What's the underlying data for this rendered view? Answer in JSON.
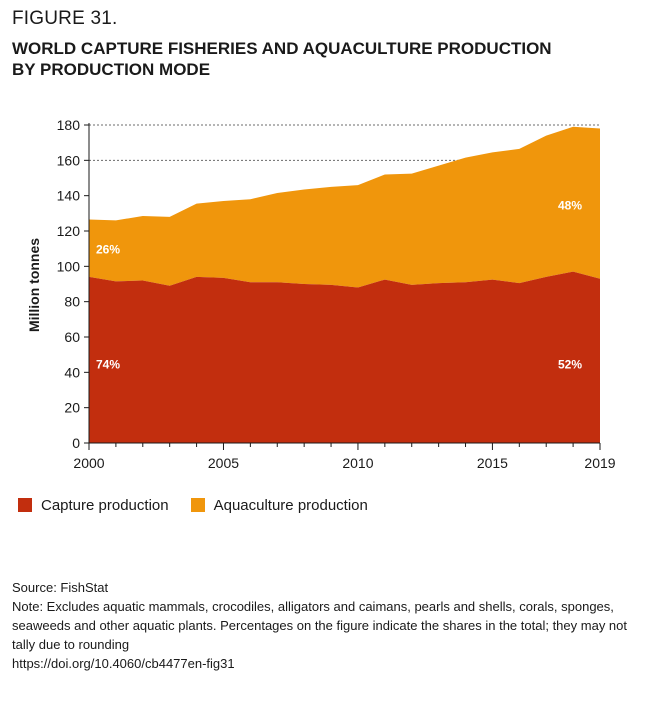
{
  "figure": {
    "label": "FIGURE 31.",
    "title_line1": "WORLD CAPTURE FISHERIES AND AQUACULTURE PRODUCTION",
    "title_line2": "BY PRODUCTION MODE"
  },
  "colors": {
    "capture": "#c22e0e",
    "aquaculture": "#f0960c",
    "grid": "#6b6b6b",
    "label_text": "#ffffff"
  },
  "chart_data": {
    "type": "area",
    "stacked": true,
    "x": [
      2000,
      2001,
      2002,
      2003,
      2004,
      2005,
      2006,
      2007,
      2008,
      2009,
      2010,
      2011,
      2012,
      2013,
      2014,
      2015,
      2016,
      2017,
      2018,
      2019
    ],
    "series": [
      {
        "name": "Capture production",
        "values": [
          94,
          91.5,
          92,
          89,
          94,
          93.5,
          91,
          91,
          90,
          89.5,
          88,
          92.5,
          89.5,
          90.5,
          91,
          92.5,
          90.5,
          94,
          97,
          93
        ]
      },
      {
        "name": "Aquaculture production",
        "values": [
          32.5,
          34.5,
          36.5,
          39,
          41.5,
          43.5,
          47,
          50.5,
          53.5,
          55.5,
          58,
          59.5,
          63,
          66.5,
          70.5,
          72,
          76,
          80,
          82,
          85
        ]
      }
    ],
    "xticks": [
      2000,
      2005,
      2010,
      2015,
      2019
    ],
    "yticks": [
      0,
      20,
      40,
      60,
      80,
      100,
      120,
      140,
      160,
      180
    ],
    "ylim": [
      0,
      180
    ],
    "ylabel": "Million tonnes",
    "xlabel": "",
    "grid": "dotted horizontal at 160 and 180",
    "annotations": [
      {
        "text": "26%",
        "x": 2000,
        "y": 110
      },
      {
        "text": "74%",
        "x": 2000,
        "y": 45
      },
      {
        "text": "48%",
        "x": 2019,
        "y": 135
      },
      {
        "text": "52%",
        "x": 2019,
        "y": 45
      }
    ],
    "legend_position": "bottom-left"
  },
  "legend": {
    "items": [
      {
        "label": "Capture production"
      },
      {
        "label": "Aquaculture production"
      }
    ]
  },
  "notes": {
    "source": "Source: FishStat",
    "note": "Note: Excludes aquatic mammals, crocodiles, alligators and caimans, pearls and shells, corals, sponges, seaweeds and other aquatic plants. Percentages on the figure indicate the shares in the total; they may not tally due to rounding",
    "doi": "https://doi.org/10.4060/cb4477en-fig31"
  }
}
